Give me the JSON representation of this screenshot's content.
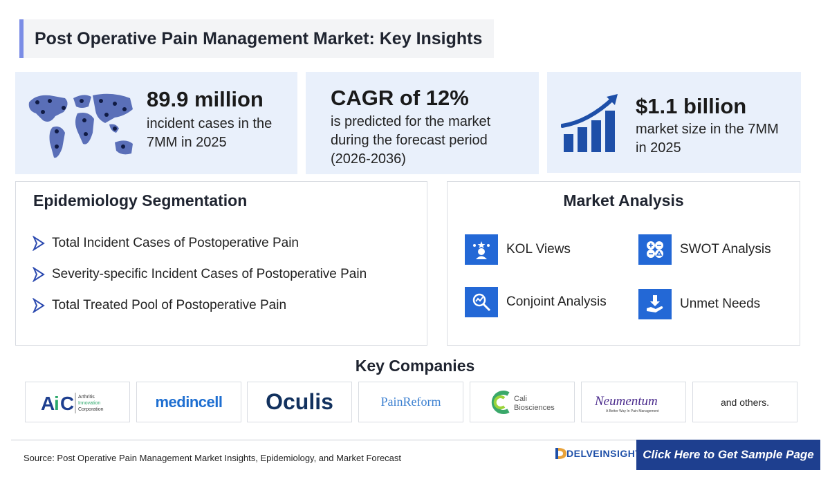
{
  "title": "Post Operative Pain Management Market: Key Insights",
  "stats": [
    {
      "big": "89.9 million",
      "sub": "incident cases in the 7MM in 2025",
      "icon": "world-map-people-icon"
    },
    {
      "big": "CAGR of 12%",
      "sub": "is predicted for the market during the forecast period (2026-2036)"
    },
    {
      "big": "$1.1 billion",
      "sub": "market size in the 7MM in 2025",
      "icon": "growth-chart-icon"
    }
  ],
  "epidemiology": {
    "heading": "Epidemiology Segmentation",
    "items": [
      "Total Incident Cases of Postoperative Pain",
      "Severity-specific Incident Cases of Postoperative Pain",
      "Total Treated Pool of Postoperative Pain"
    ]
  },
  "market_analysis": {
    "heading": "Market Analysis",
    "items": [
      "KOL Views",
      "SWOT Analysis",
      "Conjoint Analysis",
      "Unmet Needs"
    ]
  },
  "key_companies": {
    "heading": "Key Companies",
    "logos": [
      {
        "name": "AiC",
        "tagline": "Arthritis Innovation Corporation"
      },
      {
        "name": "medincell"
      },
      {
        "name": "Oculis"
      },
      {
        "name": "PainReform"
      },
      {
        "name": "Cali",
        "tagline": "Biosciences"
      },
      {
        "name": "Neumentum",
        "tagline": "A Better Way In Pain Management"
      }
    ],
    "others": "and others."
  },
  "footer": {
    "source": "Source: Post Operative Pain Management Market Insights, Epidemiology, and Market Forecast",
    "brand": "DELVEINSIGHT",
    "cta": "Click Here to Get Sample Page"
  },
  "colors": {
    "accent_blue": "#2368d6",
    "panel_bg": "#e9f0fb",
    "cta_bg": "#1e3f8f",
    "title_bar": "#7b8de6"
  }
}
